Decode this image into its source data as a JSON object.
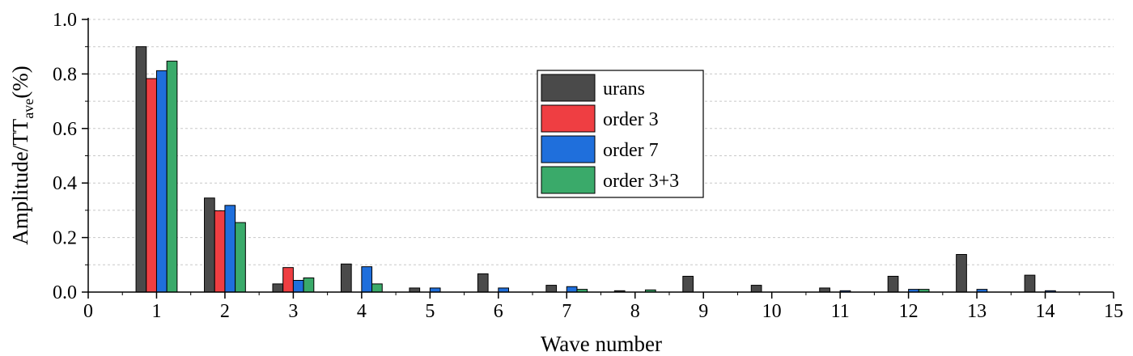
{
  "chart_data": {
    "type": "bar",
    "xlabel": "Wave number",
    "ylabel": {
      "main": "Amplitude/TT",
      "sub": "ave",
      "suffix": "(%)"
    },
    "xlim": [
      0,
      15
    ],
    "ylim": [
      0,
      1.0
    ],
    "xticks": [
      "0",
      "1",
      "2",
      "3",
      "4",
      "5",
      "6",
      "7",
      "8",
      "9",
      "10",
      "11",
      "12",
      "13",
      "14",
      "15"
    ],
    "yticks": [
      "0.0",
      "0.2",
      "0.4",
      "0.6",
      "0.8",
      "1.0"
    ],
    "grid": "horizontal-dashed",
    "legend_position": "top-center",
    "categories": [
      1,
      2,
      3,
      4,
      5,
      6,
      7,
      8,
      9,
      10,
      11,
      12,
      13,
      14
    ],
    "series": [
      {
        "name": "urans",
        "color": "#4a4a4a",
        "values": [
          0.9,
          0.345,
          0.03,
          0.103,
          0.015,
          0.067,
          0.025,
          0.005,
          0.058,
          0.025,
          0.015,
          0.058,
          0.138,
          0.062
        ]
      },
      {
        "name": "order 3",
        "color": "#ef3e42",
        "values": [
          0.783,
          0.298,
          0.09,
          0.0,
          0.0,
          0.0,
          0.0,
          0.0,
          0.0,
          0.0,
          0.0,
          0.0,
          0.0,
          0.0
        ]
      },
      {
        "name": "order 7",
        "color": "#1f6fdc",
        "values": [
          0.812,
          0.318,
          0.043,
          0.093,
          0.015,
          0.015,
          0.02,
          0.0,
          0.0,
          0.0,
          0.005,
          0.01,
          0.01,
          0.005
        ]
      },
      {
        "name": "order 3+3",
        "color": "#3aaa6a",
        "values": [
          0.847,
          0.255,
          0.052,
          0.03,
          0.0,
          0.0,
          0.01,
          0.008,
          0.0,
          0.0,
          0.0,
          0.01,
          0.0,
          0.0
        ]
      }
    ]
  }
}
